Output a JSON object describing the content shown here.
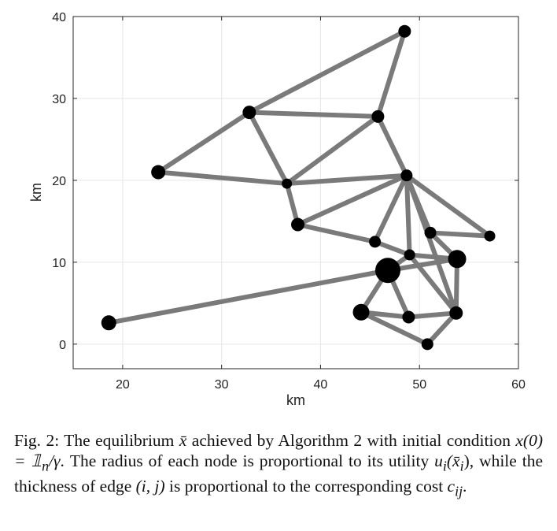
{
  "figure": {
    "xlabel": "km",
    "ylabel": "km",
    "chart_data": {
      "type": "scatter",
      "title": "",
      "xlabel": "km",
      "ylabel": "km",
      "xlim": [
        15,
        60
      ],
      "ylim": [
        -3,
        40
      ],
      "xticks": [
        20,
        30,
        40,
        50,
        60
      ],
      "yticks": [
        0,
        10,
        20,
        30,
        40
      ],
      "grid": true,
      "nodes": [
        {
          "id": 1,
          "x": 48.5,
          "y": 38.2,
          "r": 8
        },
        {
          "id": 2,
          "x": 32.8,
          "y": 28.3,
          "r": 8.5
        },
        {
          "id": 3,
          "x": 45.8,
          "y": 27.8,
          "r": 8
        },
        {
          "id": 4,
          "x": 23.6,
          "y": 21.0,
          "r": 9
        },
        {
          "id": 5,
          "x": 36.6,
          "y": 19.6,
          "r": 6.5
        },
        {
          "id": 6,
          "x": 48.7,
          "y": 20.6,
          "r": 7.5
        },
        {
          "id": 7,
          "x": 37.7,
          "y": 14.6,
          "r": 8.5
        },
        {
          "id": 8,
          "x": 45.5,
          "y": 12.5,
          "r": 7.5
        },
        {
          "id": 9,
          "x": 51.1,
          "y": 13.6,
          "r": 7.5
        },
        {
          "id": 10,
          "x": 57.1,
          "y": 13.2,
          "r": 7
        },
        {
          "id": 11,
          "x": 49.0,
          "y": 10.9,
          "r": 7
        },
        {
          "id": 12,
          "x": 53.8,
          "y": 10.4,
          "r": 11.5
        },
        {
          "id": 13,
          "x": 46.8,
          "y": 9.0,
          "r": 16
        },
        {
          "id": 14,
          "x": 44.1,
          "y": 3.9,
          "r": 10.5
        },
        {
          "id": 15,
          "x": 48.9,
          "y": 3.3,
          "r": 8
        },
        {
          "id": 16,
          "x": 53.7,
          "y": 3.8,
          "r": 8.5
        },
        {
          "id": 17,
          "x": 50.8,
          "y": 0.0,
          "r": 7.5
        },
        {
          "id": 18,
          "x": 18.6,
          "y": 2.6,
          "r": 9.5
        }
      ],
      "edges": [
        [
          1,
          2
        ],
        [
          1,
          3
        ],
        [
          2,
          3
        ],
        [
          2,
          4
        ],
        [
          2,
          5
        ],
        [
          3,
          5
        ],
        [
          3,
          6
        ],
        [
          4,
          5
        ],
        [
          5,
          6
        ],
        [
          5,
          7
        ],
        [
          7,
          6
        ],
        [
          7,
          8
        ],
        [
          8,
          11
        ],
        [
          6,
          8
        ],
        [
          6,
          9
        ],
        [
          6,
          11
        ],
        [
          6,
          16
        ],
        [
          6,
          10
        ],
        [
          9,
          10
        ],
        [
          9,
          12
        ],
        [
          11,
          12
        ],
        [
          11,
          13
        ],
        [
          11,
          16
        ],
        [
          12,
          16
        ],
        [
          13,
          14
        ],
        [
          13,
          15
        ],
        [
          13,
          18
        ],
        [
          14,
          15
        ],
        [
          14,
          17
        ],
        [
          15,
          16
        ],
        [
          16,
          17
        ],
        [
          12,
          13
        ]
      ]
    }
  },
  "caption": {
    "label": "Fig. 2:",
    "part1": " The equilibrium ",
    "xbar": "x̄",
    "part2": " achieved by Algorithm 2 with initial condition ",
    "init": "x(0) = 𝟙",
    "init_sub": "n",
    "init_rest": "/γ",
    "part3": ". The radius of each node is proportional to its utility ",
    "util": "u",
    "util_sub": "i",
    "util_arg": "(x̄",
    "util_arg_sub": "i",
    "util_close": ")",
    "part4": ", while the thickness of edge ",
    "edge": "(i, j)",
    "part5": " is proportional to the corresponding cost ",
    "cost": "c",
    "cost_sub": "ij",
    "part6": "."
  }
}
